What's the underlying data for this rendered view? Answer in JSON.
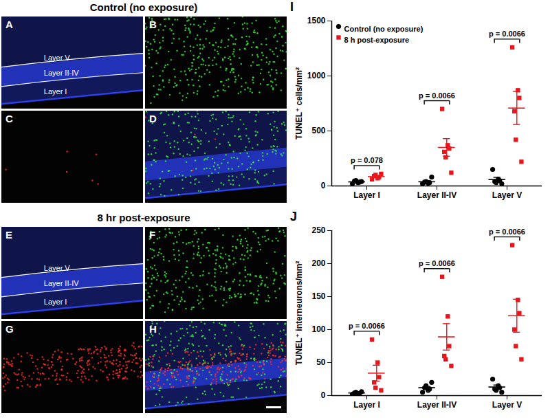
{
  "figure": {
    "groups": [
      {
        "heading": "Control (no exposure)",
        "panels": [
          {
            "label": "A",
            "color": "#2f45ff",
            "layers": [
              "Layer V",
              "Layer II-IV",
              "Layer I"
            ]
          },
          {
            "label": "B",
            "color": "#3ee63e"
          },
          {
            "label": "C",
            "color": "#ff2b2b"
          },
          {
            "label": "D",
            "colors": [
              "#2f45ff",
              "#3ee63e",
              "#ff2b2b"
            ]
          }
        ]
      },
      {
        "heading": "8 hr post-exposure",
        "panels": [
          {
            "label": "E",
            "color": "#2f45ff",
            "layers": [
              "Layer V",
              "Layer II-IV",
              "Layer I"
            ]
          },
          {
            "label": "F",
            "color": "#3ee63e"
          },
          {
            "label": "G",
            "color": "#ff2b2b"
          },
          {
            "label": "H",
            "colors": [
              "#2f45ff",
              "#3ee63e",
              "#ff2b2b"
            ]
          }
        ]
      }
    ]
  },
  "chart_data": [
    {
      "type": "scatter",
      "title": "I",
      "y_label": "TUNEL⁺ cells/mm²",
      "categories": [
        "Layer I",
        "Layer II-IV",
        "Layer V"
      ],
      "ylim": [
        0,
        1500
      ],
      "yticks": [
        0,
        500,
        1000,
        1500
      ],
      "legend": "top-left",
      "series": [
        {
          "name": "Control (no exposure)",
          "color": "#000000",
          "marker": "circle",
          "values": [
            [
              20,
              30,
              35,
              45,
              50,
              40
            ],
            [
              20,
              25,
              30,
              35,
              40,
              80
            ],
            [
              150,
              60,
              50,
              40,
              30,
              20
            ]
          ],
          "means": [
            37,
            38,
            58
          ],
          "errors": [
            5,
            9,
            20
          ]
        },
        {
          "name": "8 h post-exposure",
          "color": "#e8161b",
          "marker": "square",
          "values": [
            [
              60,
              70,
              80,
              90,
              100,
              110
            ],
            [
              700,
              370,
              340,
              310,
              260,
              120
            ],
            [
              1260,
              870,
              800,
              680,
              420,
              220
            ]
          ],
          "means": [
            85,
            350,
            708
          ],
          "errors": [
            8,
            80,
            150
          ]
        }
      ],
      "annotations": [
        {
          "category": "Layer I",
          "text": "p = 0.078"
        },
        {
          "category": "Layer II-IV",
          "text": "p = 0.0066"
        },
        {
          "category": "Layer V",
          "text": "p = 0.0066"
        }
      ]
    },
    {
      "type": "scatter",
      "title": "J",
      "y_label": "TUNEL⁺ interneurons/mm²",
      "categories": [
        "Layer I",
        "Layer II-IV",
        "Layer V"
      ],
      "ylim": [
        0,
        250
      ],
      "yticks": [
        0,
        50,
        100,
        150,
        200,
        250
      ],
      "series": [
        {
          "name": "Control (no exposure)",
          "color": "#000000",
          "marker": "circle",
          "values": [
            [
              2,
              3,
              3,
              4,
              5,
              6
            ],
            [
              5,
              8,
              10,
              12,
              15,
              20
            ],
            [
              25,
              15,
              12,
              10,
              8,
              5
            ]
          ],
          "means": [
            4,
            12,
            13
          ],
          "errors": [
            1,
            2,
            3
          ]
        },
        {
          "name": "8 h post-exposure",
          "color": "#e8161b",
          "marker": "square",
          "values": [
            [
              85,
              50,
              28,
              20,
              12,
              8
            ],
            [
              180,
              120,
              75,
              60,
              55,
              45
            ],
            [
              228,
              145,
              125,
              100,
              75,
              55
            ]
          ],
          "means": [
            34,
            89,
            121
          ],
          "errors": [
            12,
            20,
            25
          ]
        }
      ],
      "annotations": [
        {
          "category": "Layer I",
          "text": "p = 0.0066"
        },
        {
          "category": "Layer II-IV",
          "text": "p = 0.0066"
        },
        {
          "category": "Layer V",
          "text": "p = 0.0066"
        }
      ]
    }
  ]
}
